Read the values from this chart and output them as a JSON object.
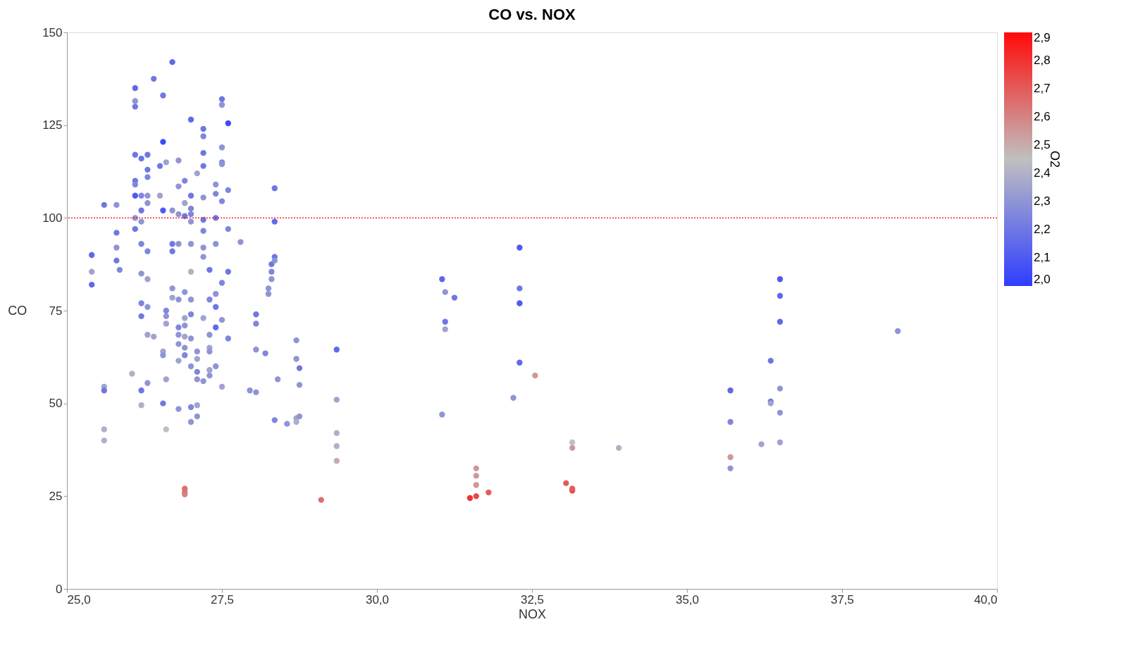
{
  "chart_data": {
    "type": "scatter",
    "title": "CO vs. NOX",
    "xlabel": "NOX",
    "ylabel": "CO",
    "clabel": "O2",
    "xlim": [
      25,
      40
    ],
    "ylim": [
      0,
      150
    ],
    "xticks": [
      {
        "value": 25,
        "label": "25,0"
      },
      {
        "value": 27.5,
        "label": "27,5"
      },
      {
        "value": 30,
        "label": "30,0"
      },
      {
        "value": 32.5,
        "label": "32,5"
      },
      {
        "value": 35,
        "label": "35,0"
      },
      {
        "value": 37.5,
        "label": "37,5"
      },
      {
        "value": 40,
        "label": "40,0"
      }
    ],
    "yticks": [
      0,
      25,
      50,
      75,
      100,
      125,
      150
    ],
    "clim": [
      2.0,
      2.9
    ],
    "cticks": [
      {
        "value": 2.0,
        "label": "2,0"
      },
      {
        "value": 2.1,
        "label": "2,1"
      },
      {
        "value": 2.2,
        "label": "2,2"
      },
      {
        "value": 2.3,
        "label": "2,3"
      },
      {
        "value": 2.4,
        "label": "2,4"
      },
      {
        "value": 2.5,
        "label": "2,5"
      },
      {
        "value": 2.6,
        "label": "2,6"
      },
      {
        "value": 2.7,
        "label": "2,7"
      },
      {
        "value": 2.8,
        "label": "2,8"
      },
      {
        "value": 2.9,
        "label": "2,9"
      }
    ],
    "grid": false,
    "marker": "circle",
    "ref_lines": [
      {
        "axis": "y",
        "value": 100,
        "color": "#ff0000",
        "line_style": "dotted"
      }
    ],
    "x": [
      25.4,
      25.4,
      25.4,
      25.6,
      25.6,
      25.6,
      25.6,
      25.6,
      25.8,
      25.8,
      25.8,
      25.8,
      25.85,
      26.05,
      26.1,
      26.1,
      26.1,
      26.1,
      26.1,
      26.1,
      26.1,
      26.1,
      26.1,
      26.2,
      26.2,
      26.2,
      26.2,
      26.2,
      26.2,
      26.2,
      26.2,
      26.2,
      26.2,
      26.3,
      26.3,
      26.3,
      26.3,
      26.3,
      26.3,
      26.3,
      26.3,
      26.3,
      26.3,
      26.4,
      26.4,
      26.5,
      26.5,
      26.55,
      26.55,
      26.55,
      26.55,
      26.55,
      26.55,
      26.6,
      26.6,
      26.6,
      26.6,
      26.6,
      26.6,
      26.7,
      26.7,
      26.7,
      26.7,
      26.7,
      26.7,
      26.8,
      26.8,
      26.8,
      26.8,
      26.8,
      26.8,
      26.8,
      26.8,
      26.8,
      26.8,
      26.9,
      26.9,
      26.9,
      26.9,
      26.9,
      26.9,
      26.9,
      26.9,
      26.9,
      26.9,
      26.9,
      26.9,
      27.0,
      27.0,
      27.0,
      27.0,
      27.0,
      27.0,
      27.0,
      27.0,
      27.0,
      27.0,
      27.0,
      27.0,
      27.0,
      27.1,
      27.1,
      27.1,
      27.1,
      27.1,
      27.1,
      27.1,
      27.2,
      27.2,
      27.2,
      27.2,
      27.2,
      27.2,
      27.2,
      27.2,
      27.2,
      27.2,
      27.2,
      27.3,
      27.3,
      27.3,
      27.3,
      27.3,
      27.3,
      27.3,
      27.4,
      27.4,
      27.4,
      27.4,
      27.4,
      27.4,
      27.4,
      27.4,
      27.5,
      27.5,
      27.5,
      27.5,
      27.5,
      27.5,
      27.5,
      27.5,
      27.5,
      27.6,
      27.6,
      27.6,
      27.6,
      27.6,
      27.8,
      27.95,
      28.05,
      28.05,
      28.05,
      28.05,
      28.2,
      28.25,
      28.25,
      28.3,
      28.3,
      28.3,
      28.35,
      28.35,
      28.35,
      28.35,
      28.35,
      28.4,
      28.55,
      28.7,
      28.7,
      28.7,
      28.7,
      28.75,
      28.75,
      28.75,
      29.1,
      29.35,
      29.35,
      29.35,
      29.35,
      29.35,
      31.05,
      31.05,
      31.1,
      31.1,
      31.1,
      31.25,
      32.2,
      32.3,
      32.3,
      32.3,
      32.3,
      32.55,
      31.5,
      31.6,
      31.6,
      31.6,
      31.6,
      31.8,
      33.05,
      33.15,
      33.15,
      33.15,
      33.15,
      33.9,
      35.7,
      35.7,
      35.7,
      35.7,
      36.2,
      36.35,
      36.35,
      36.35,
      36.5,
      36.5,
      36.5,
      36.5,
      36.5,
      36.5,
      38.4
    ],
    "values": [
      90,
      85.5,
      82,
      54.5,
      53.5,
      43,
      40,
      103.5,
      103.5,
      96,
      92,
      88.5,
      86,
      58,
      135,
      131.5,
      130,
      117,
      110,
      109,
      106,
      100,
      97,
      116,
      106,
      102,
      99,
      93,
      85,
      77,
      73.5,
      53.5,
      49.5,
      117,
      113,
      111,
      106,
      104,
      91,
      83.5,
      76,
      68.5,
      55.5,
      137.5,
      68,
      114,
      106,
      133,
      120.5,
      102,
      64,
      63,
      50,
      115,
      75,
      73.5,
      71.5,
      56.5,
      43,
      142,
      102,
      93,
      91,
      81,
      78.5,
      115.5,
      108.5,
      101,
      93,
      78,
      70.5,
      68.5,
      66,
      61.5,
      48.5,
      110,
      104,
      100.5,
      80,
      73,
      71,
      68,
      65,
      63,
      27,
      26,
      25.5,
      126.5,
      106,
      102.5,
      101,
      99,
      93,
      85.5,
      78,
      74,
      67.5,
      60,
      49,
      45,
      112,
      64,
      62,
      58.5,
      56.5,
      49.5,
      46.5,
      124,
      122,
      117.5,
      114,
      105.5,
      99.5,
      96.5,
      92,
      89.5,
      73,
      56,
      86,
      78,
      68.5,
      65,
      64,
      59,
      57.5,
      109,
      106.5,
      100,
      93,
      79.5,
      76,
      70.5,
      60,
      132,
      130.5,
      119,
      115,
      114.5,
      104.5,
      82.5,
      72.5,
      54.5,
      125.5,
      107.5,
      97,
      85.5,
      67.5,
      93.5,
      53.5,
      74,
      71.5,
      64.5,
      53,
      63.5,
      81,
      79.5,
      87.5,
      85.5,
      83.5,
      108,
      99,
      89.5,
      88.5,
      45.5,
      56.5,
      44.5,
      67,
      62,
      46,
      45,
      59.5,
      55,
      46.5,
      24,
      64.5,
      51,
      42,
      38.5,
      34.5,
      83.5,
      47,
      80,
      72,
      70,
      78.5,
      51.5,
      92,
      81,
      77,
      61,
      57.5,
      24.5,
      25,
      28,
      30.5,
      32.5,
      26,
      28.5,
      26.5,
      27,
      38,
      39.5,
      38,
      53.5,
      45,
      35.5,
      32.5,
      39,
      61.5,
      50.5,
      50,
      83.5,
      79,
      72,
      54,
      47.5,
      39.5,
      69.5
    ],
    "cvalues": [
      2.15,
      2.35,
      2.15,
      2.35,
      2.2,
      2.4,
      2.4,
      2.2,
      2.3,
      2.2,
      2.3,
      2.2,
      2.25,
      2.4,
      2.15,
      2.3,
      2.2,
      2.2,
      2.2,
      2.25,
      2.1,
      2.3,
      2.2,
      2.2,
      2.25,
      2.2,
      2.3,
      2.25,
      2.3,
      2.25,
      2.2,
      2.2,
      2.4,
      2.2,
      2.2,
      2.25,
      2.3,
      2.3,
      2.25,
      2.35,
      2.3,
      2.35,
      2.3,
      2.2,
      2.35,
      2.2,
      2.35,
      2.2,
      2.05,
      2.1,
      2.35,
      2.3,
      2.2,
      2.35,
      2.25,
      2.3,
      2.35,
      2.35,
      2.45,
      2.15,
      2.3,
      2.2,
      2.2,
      2.3,
      2.35,
      2.3,
      2.3,
      2.3,
      2.3,
      2.3,
      2.25,
      2.3,
      2.3,
      2.35,
      2.3,
      2.25,
      2.35,
      2.2,
      2.3,
      2.35,
      2.3,
      2.35,
      2.3,
      2.25,
      2.65,
      2.65,
      2.6,
      2.15,
      2.2,
      2.25,
      2.25,
      2.3,
      2.3,
      2.4,
      2.3,
      2.25,
      2.3,
      2.3,
      2.25,
      2.3,
      2.35,
      2.3,
      2.35,
      2.25,
      2.3,
      2.35,
      2.3,
      2.2,
      2.25,
      2.2,
      2.2,
      2.3,
      2.2,
      2.25,
      2.3,
      2.3,
      2.35,
      2.3,
      2.2,
      2.25,
      2.3,
      2.35,
      2.3,
      2.35,
      2.3,
      2.3,
      2.25,
      2.2,
      2.3,
      2.3,
      2.2,
      2.15,
      2.3,
      2.2,
      2.3,
      2.3,
      2.25,
      2.3,
      2.25,
      2.25,
      2.3,
      2.35,
      2.05,
      2.25,
      2.25,
      2.2,
      2.25,
      2.3,
      2.3,
      2.2,
      2.25,
      2.3,
      2.3,
      2.25,
      2.3,
      2.3,
      2.2,
      2.25,
      2.3,
      2.2,
      2.15,
      2.2,
      2.3,
      2.25,
      2.3,
      2.3,
      2.3,
      2.3,
      2.35,
      2.4,
      2.2,
      2.3,
      2.3,
      2.65,
      2.15,
      2.35,
      2.4,
      2.4,
      2.5,
      2.15,
      2.3,
      2.3,
      2.2,
      2.35,
      2.2,
      2.3,
      2.1,
      2.2,
      2.1,
      2.15,
      2.55,
      2.8,
      2.75,
      2.55,
      2.55,
      2.55,
      2.7,
      2.7,
      2.75,
      2.7,
      2.55,
      2.45,
      2.4,
      2.15,
      2.25,
      2.55,
      2.3,
      2.35,
      2.2,
      2.2,
      2.35,
      2.1,
      2.15,
      2.15,
      2.3,
      2.3,
      2.35,
      2.3
    ]
  }
}
